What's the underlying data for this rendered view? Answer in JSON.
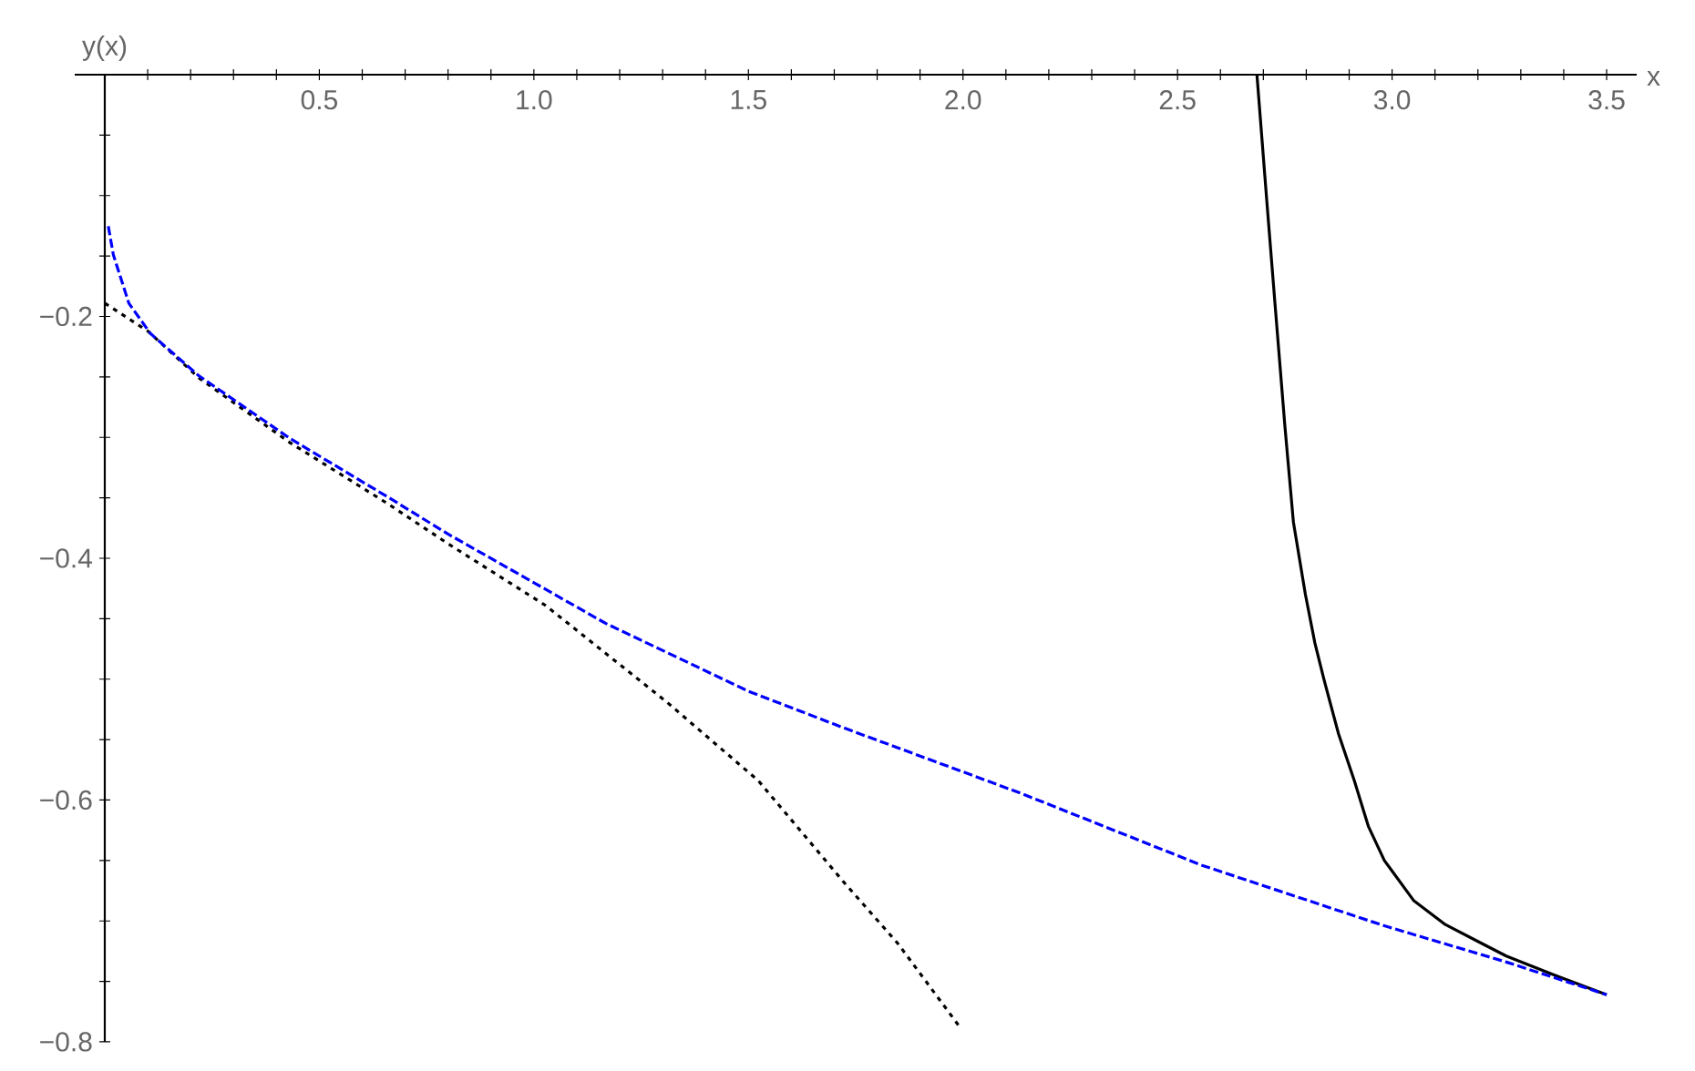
{
  "chart_data": {
    "type": "line",
    "xlabel": "x",
    "ylabel": "y(x)",
    "xlim": [
      -0.07,
      3.57
    ],
    "ylim": [
      -0.8,
      0
    ],
    "xticks": [
      {
        "value": 0.1,
        "label": null
      },
      {
        "value": 0.2,
        "label": null
      },
      {
        "value": 0.3,
        "label": null
      },
      {
        "value": 0.4,
        "label": null
      },
      {
        "value": 0.5,
        "label": "0.5"
      },
      {
        "value": 0.6,
        "label": null
      },
      {
        "value": 0.7,
        "label": null
      },
      {
        "value": 0.8,
        "label": null
      },
      {
        "value": 0.9,
        "label": null
      },
      {
        "value": 1.0,
        "label": "1.0"
      },
      {
        "value": 1.1,
        "label": null
      },
      {
        "value": 1.2,
        "label": null
      },
      {
        "value": 1.3,
        "label": null
      },
      {
        "value": 1.4,
        "label": null
      },
      {
        "value": 1.5,
        "label": "1.5"
      },
      {
        "value": 1.6,
        "label": null
      },
      {
        "value": 1.7,
        "label": null
      },
      {
        "value": 1.8,
        "label": null
      },
      {
        "value": 1.9,
        "label": null
      },
      {
        "value": 2.0,
        "label": "2.0"
      },
      {
        "value": 2.1,
        "label": null
      },
      {
        "value": 2.2,
        "label": null
      },
      {
        "value": 2.3,
        "label": null
      },
      {
        "value": 2.4,
        "label": null
      },
      {
        "value": 2.5,
        "label": "2.5"
      },
      {
        "value": 2.6,
        "label": null
      },
      {
        "value": 2.7,
        "label": null
      },
      {
        "value": 2.8,
        "label": null
      },
      {
        "value": 2.9,
        "label": null
      },
      {
        "value": 3.0,
        "label": "3.0"
      },
      {
        "value": 3.1,
        "label": null
      },
      {
        "value": 3.2,
        "label": null
      },
      {
        "value": 3.3,
        "label": null
      },
      {
        "value": 3.4,
        "label": null
      },
      {
        "value": 3.5,
        "label": "3.5"
      }
    ],
    "yticks": [
      {
        "value": -0.05,
        "label": null
      },
      {
        "value": -0.1,
        "label": null
      },
      {
        "value": -0.15,
        "label": null
      },
      {
        "value": -0.2,
        "label": "−0.2"
      },
      {
        "value": -0.25,
        "label": null
      },
      {
        "value": -0.3,
        "label": null
      },
      {
        "value": -0.35,
        "label": null
      },
      {
        "value": -0.4,
        "label": "−0.4"
      },
      {
        "value": -0.45,
        "label": null
      },
      {
        "value": -0.5,
        "label": null
      },
      {
        "value": -0.55,
        "label": null
      },
      {
        "value": -0.6,
        "label": "−0.6"
      },
      {
        "value": -0.65,
        "label": null
      },
      {
        "value": -0.7,
        "label": null
      },
      {
        "value": -0.75,
        "label": null
      },
      {
        "value": -0.8,
        "label": "−0.8"
      }
    ],
    "series": [
      {
        "color": "#0000ff",
        "line_style": "dashed",
        "x": [
          0.007,
          0.02,
          0.056,
          0.106,
          0.219,
          0.432,
          0.658,
          0.8,
          1.168,
          1.5,
          1.72,
          2.132,
          2.557,
          2.982,
          3.266,
          3.5
        ],
        "values": [
          -0.123,
          -0.149,
          -0.189,
          -0.214,
          -0.249,
          -0.301,
          -0.349,
          -0.38,
          -0.454,
          -0.51,
          -0.54,
          -0.594,
          -0.654,
          -0.704,
          -0.734,
          -0.761
        ]
      },
      {
        "color": "#000000",
        "line_style": "dotted",
        "x": [
          0.0,
          0.1,
          0.22,
          0.43,
          0.66,
          0.8,
          1.027,
          1.31,
          1.523,
          1.72,
          1.849,
          1.991
        ],
        "values": [
          -0.189,
          -0.212,
          -0.251,
          -0.304,
          -0.355,
          -0.388,
          -0.439,
          -0.519,
          -0.584,
          -0.667,
          -0.719,
          -0.787
        ]
      },
      {
        "color": "#000000",
        "line_style": "solid",
        "x": [
          2.685,
          2.707,
          2.727,
          2.75,
          2.77,
          2.798,
          2.82,
          2.841,
          2.875,
          2.912,
          2.945,
          2.982,
          3.05,
          3.124,
          3.2,
          3.266,
          3.38,
          3.5
        ],
        "values": [
          0.0,
          -0.1,
          -0.189,
          -0.29,
          -0.37,
          -0.43,
          -0.47,
          -0.5,
          -0.545,
          -0.584,
          -0.622,
          -0.65,
          -0.683,
          -0.703,
          -0.717,
          -0.729,
          -0.745,
          -0.761
        ]
      }
    ]
  }
}
